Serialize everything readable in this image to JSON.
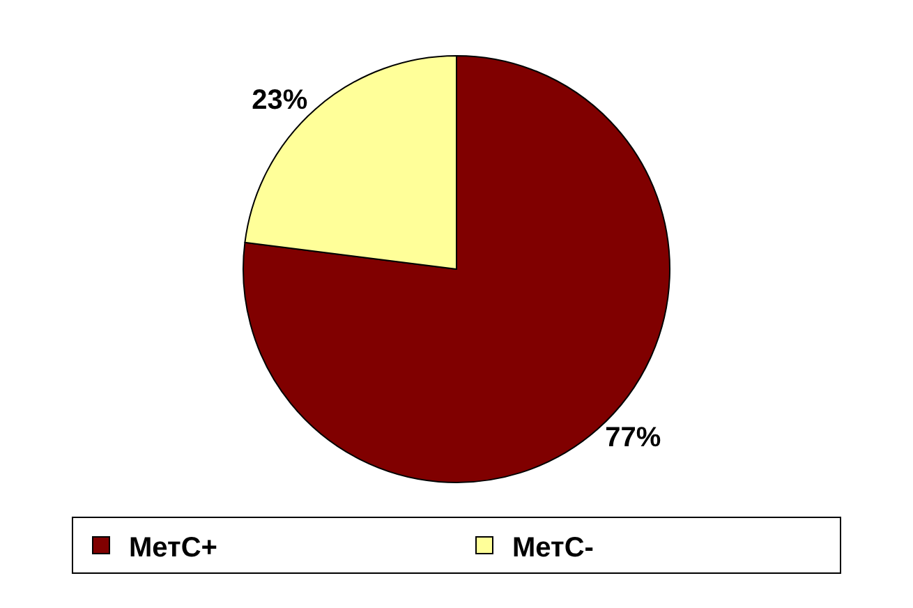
{
  "chart_data": {
    "type": "pie",
    "categories": [
      "МетС+",
      "МетС-"
    ],
    "values": [
      77,
      23
    ],
    "colors": [
      "#800000",
      "#ffff99"
    ],
    "value_labels": [
      "77%",
      "23%"
    ],
    "legend": "bottom"
  }
}
